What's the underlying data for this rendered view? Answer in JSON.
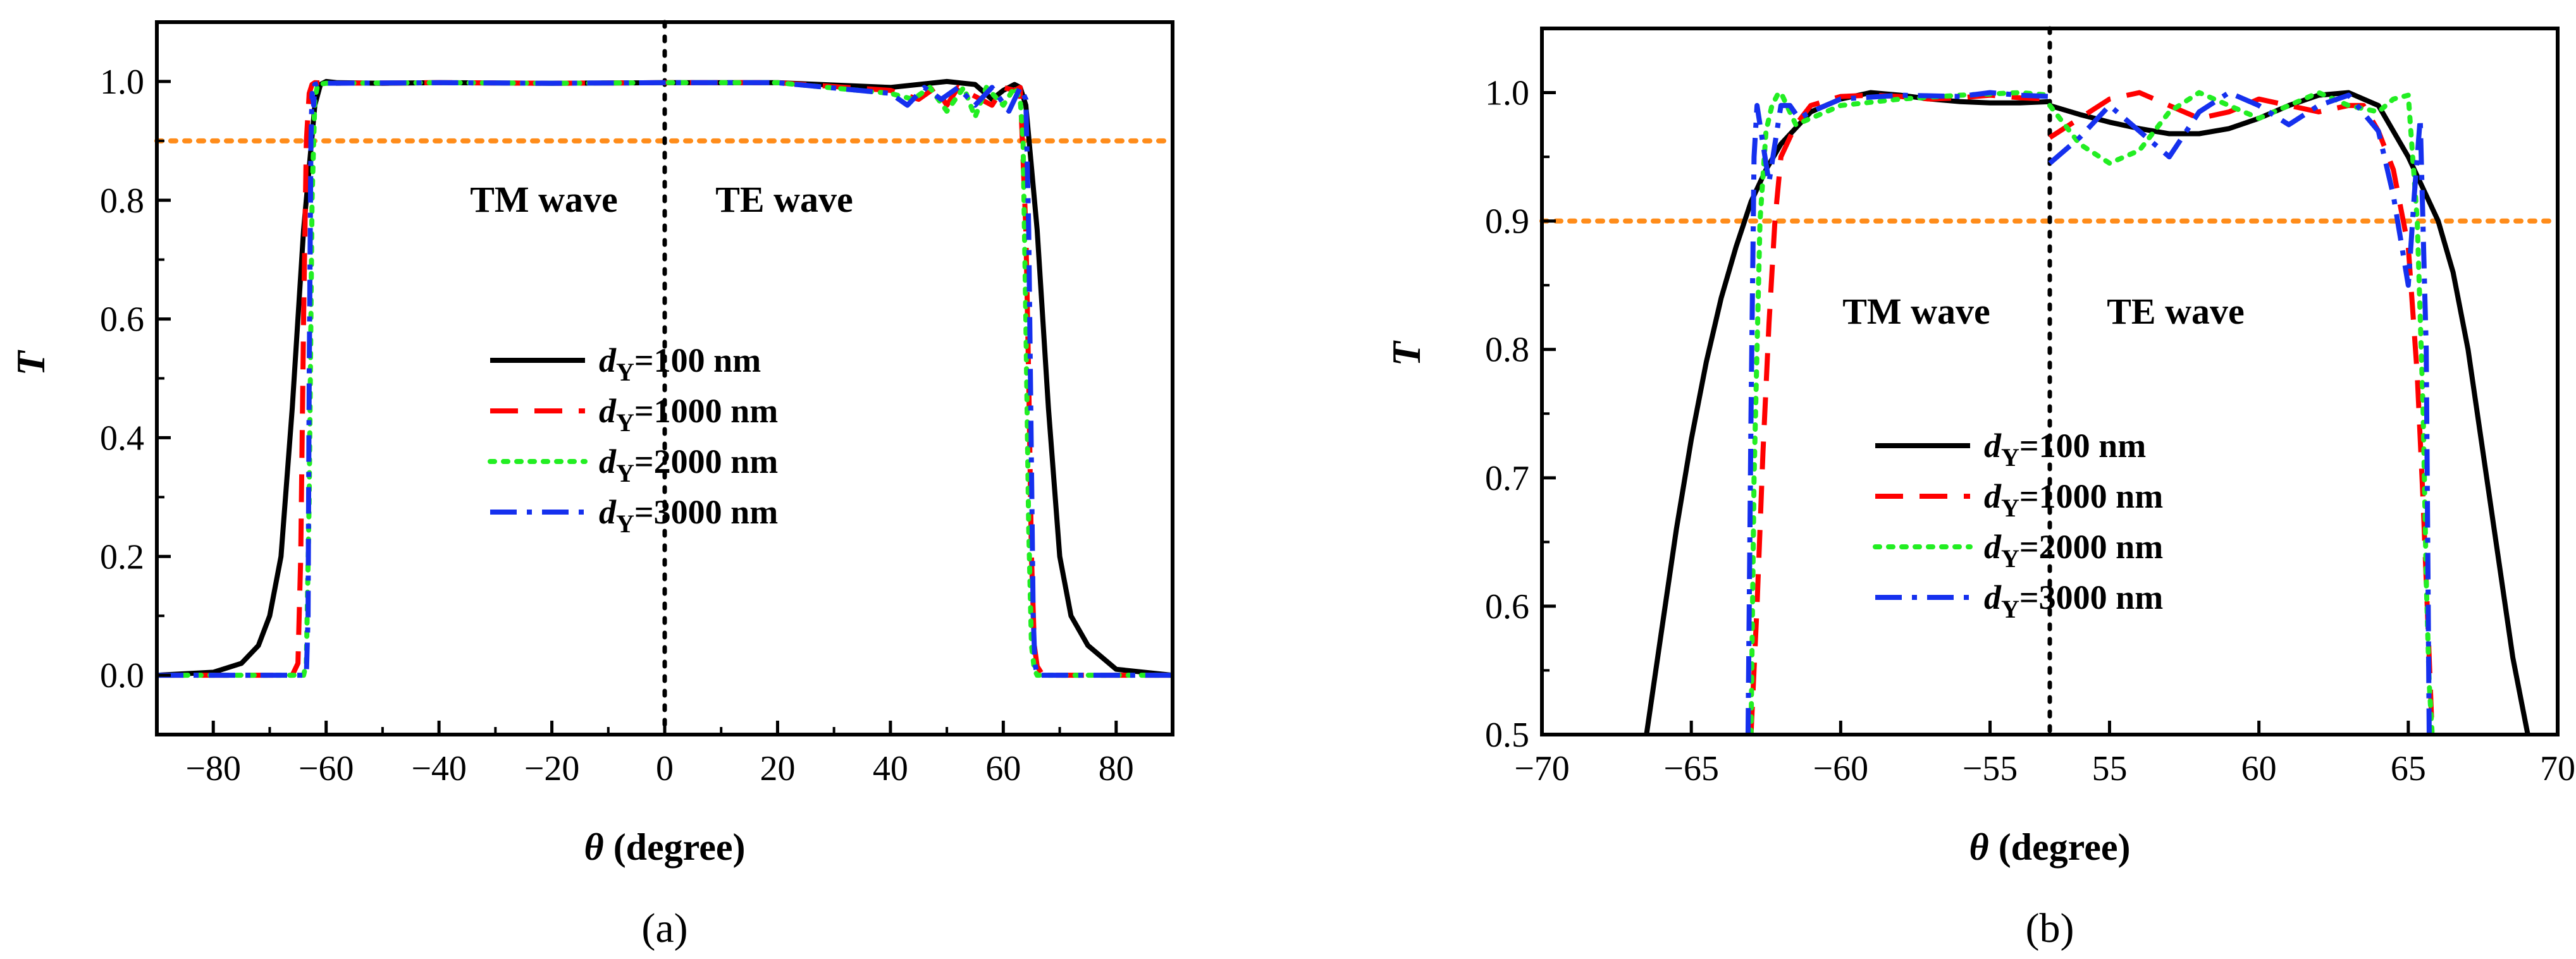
{
  "chart_data": [
    {
      "type": "line",
      "panel_label": "(a)",
      "xlabel_symbol": "θ",
      "xlabel_rest": " (degree)",
      "ylabel": "T",
      "xlim": [
        -90,
        90
      ],
      "ylim": [
        -0.1,
        1.1
      ],
      "xticks": [
        -80,
        -60,
        -40,
        -20,
        0,
        20,
        40,
        60,
        80
      ],
      "xtick_labels": [
        "−80",
        "−60",
        "−40",
        "−20",
        "0",
        "20",
        "40",
        "60",
        "80"
      ],
      "yticks": [
        0.0,
        0.2,
        0.4,
        0.6,
        0.8,
        1.0
      ],
      "ytick_labels": [
        "0.0",
        "0.2",
        "0.4",
        "0.6",
        "0.8",
        "1.0"
      ],
      "threshold": 0.9,
      "divider_x": 0,
      "annotations": [
        {
          "text": "TM wave",
          "x": -35,
          "y": 0.82
        },
        {
          "text": "TE wave",
          "x": 20,
          "y": 0.82
        }
      ],
      "legend_placement": "center",
      "series": [
        {
          "name": "dY=100 nm",
          "d_symbol": "d",
          "d_sub": "Y",
          "label_rest": "=100 nm",
          "color": "#000000",
          "style": "solid",
          "x": [
            -90,
            -80,
            -75,
            -72,
            -70,
            -68,
            -66,
            -64,
            -62,
            -61,
            -60,
            -58,
            -50,
            -40,
            -20,
            0,
            20,
            40,
            45,
            50,
            55,
            58,
            60,
            62,
            63,
            64,
            66,
            68,
            70,
            72,
            75,
            80,
            90
          ],
          "y": [
            0.0,
            0.005,
            0.02,
            0.05,
            0.1,
            0.2,
            0.45,
            0.75,
            0.96,
            0.995,
            1.0,
            0.998,
            0.997,
            0.998,
            0.997,
            0.998,
            0.998,
            0.99,
            0.995,
            1.0,
            0.995,
            0.97,
            0.985,
            0.995,
            0.99,
            0.96,
            0.75,
            0.45,
            0.2,
            0.1,
            0.05,
            0.01,
            0.0
          ]
        },
        {
          "name": "dY=1000 nm",
          "d_symbol": "d",
          "d_sub": "Y",
          "label_rest": "=1000 nm",
          "color": "#ff0000",
          "style": "dash",
          "x": [
            -90,
            -66,
            -65,
            -64.5,
            -64,
            -63.5,
            -63,
            -62.5,
            -62,
            -60,
            -40,
            -20,
            0,
            20,
            40,
            45,
            48,
            50,
            52,
            55,
            58,
            60,
            62,
            63,
            64,
            64.5,
            65,
            65.5,
            66,
            67,
            70,
            90
          ],
          "y": [
            0.0,
            0.0,
            0.02,
            0.2,
            0.6,
            0.9,
            0.98,
            0.995,
            0.998,
            0.997,
            0.998,
            0.997,
            0.998,
            0.998,
            0.985,
            0.97,
            0.99,
            0.96,
            0.99,
            0.975,
            0.96,
            0.99,
            0.985,
            0.99,
            0.75,
            0.5,
            0.2,
            0.05,
            0.015,
            0.0,
            0.0,
            0.0
          ]
        },
        {
          "name": "dY=2000 nm",
          "d_symbol": "d",
          "d_sub": "Y",
          "label_rest": "=2000 nm",
          "color": "#22ee22",
          "style": "dot",
          "x": [
            -90,
            -64,
            -63.5,
            -63,
            -62.5,
            -62,
            -61.5,
            -60,
            -40,
            -20,
            0,
            20,
            40,
            44,
            47,
            50,
            53,
            55,
            57,
            60,
            62,
            63,
            63.5,
            64,
            64.5,
            65,
            65.5,
            66,
            90
          ],
          "y": [
            0.0,
            0.0,
            0.02,
            0.3,
            0.8,
            0.97,
            0.995,
            0.997,
            0.998,
            0.997,
            0.998,
            0.998,
            0.98,
            0.97,
            0.99,
            0.95,
            0.99,
            0.94,
            0.99,
            0.96,
            0.99,
            0.97,
            0.9,
            0.6,
            0.25,
            0.05,
            0.01,
            0.0,
            0.0
          ]
        },
        {
          "name": "dY=3000 nm",
          "d_symbol": "d",
          "d_sub": "Y",
          "label_rest": "=3000 nm",
          "color": "#1530ee",
          "style": "dashdot",
          "x": [
            -90,
            -63.5,
            -63.2,
            -63,
            -62.7,
            -62.5,
            -62.2,
            -62,
            -61,
            -60,
            -40,
            -20,
            0,
            20,
            40,
            43,
            46,
            49,
            52,
            55,
            58,
            61,
            63,
            64,
            64.5,
            65,
            65.3,
            65.6,
            66,
            90
          ],
          "y": [
            0.0,
            0.0,
            0.1,
            0.5,
            0.9,
            0.98,
            0.96,
            0.995,
            0.998,
            0.997,
            0.998,
            0.997,
            0.998,
            0.998,
            0.98,
            0.96,
            0.99,
            0.97,
            0.99,
            0.96,
            0.99,
            0.95,
            0.99,
            0.97,
            0.75,
            0.35,
            0.1,
            0.02,
            0.0,
            0.0
          ]
        }
      ]
    },
    {
      "type": "line",
      "panel_label": "(b)",
      "xlabel_symbol": "θ",
      "xlabel_rest": " (degree)",
      "ylabel": "T",
      "note": "Broken x-axis: left half is the TM-wave range (−70 to −53), right half is the TE-wave range (53 to 70).",
      "xlim_left": [
        -70,
        -53
      ],
      "xlim_right": [
        53,
        70
      ],
      "ylim": [
        0.5,
        1.05
      ],
      "xticks_left": [
        -70,
        -65,
        -60,
        -55
      ],
      "xticks_right": [
        55,
        60,
        65,
        70
      ],
      "xtick_labels": [
        "−70",
        "−65",
        "−60",
        "−55",
        "55",
        "60",
        "65",
        "70"
      ],
      "yticks": [
        0.5,
        0.6,
        0.7,
        0.8,
        0.9,
        1.0
      ],
      "ytick_labels": [
        "0.5",
        "0.6",
        "0.7",
        "0.8",
        "0.9",
        "1.0"
      ],
      "threshold": 0.9,
      "annotations": [
        {
          "text": "TM wave",
          "half": "left",
          "x": -60,
          "y": 0.82
        },
        {
          "text": "TE wave",
          "half": "right",
          "x": 57,
          "y": 0.82
        }
      ],
      "legend_placement": "lower-center",
      "series": [
        {
          "name": "dY=100 nm",
          "d_symbol": "d",
          "d_sub": "Y",
          "label_rest": "=100 nm",
          "color": "#000000",
          "style": "solid",
          "left": {
            "x": [
              -66.5,
              -66,
              -65.5,
              -65,
              -64.5,
              -64,
              -63.5,
              -63,
              -62.5,
              -62,
              -61,
              -60,
              -59,
              -58,
              -57,
              -56,
              -55,
              -54,
              -53
            ],
            "y": [
              0.5,
              0.58,
              0.66,
              0.73,
              0.79,
              0.84,
              0.88,
              0.915,
              0.94,
              0.96,
              0.985,
              0.995,
              1.0,
              0.998,
              0.995,
              0.993,
              0.992,
              0.992,
              0.993
            ]
          },
          "right": {
            "x": [
              53,
              54,
              55,
              56,
              57,
              58,
              59,
              60,
              61,
              62,
              63,
              64,
              65,
              66,
              66.5,
              67,
              67.5,
              68,
              68.5,
              69
            ],
            "y": [
              0.99,
              0.983,
              0.977,
              0.972,
              0.968,
              0.968,
              0.972,
              0.98,
              0.99,
              0.998,
              1.0,
              0.99,
              0.95,
              0.9,
              0.86,
              0.8,
              0.72,
              0.64,
              0.56,
              0.5
            ]
          }
        },
        {
          "name": "dY=1000 nm",
          "d_symbol": "d",
          "d_sub": "Y",
          "label_rest": "=1000 nm",
          "color": "#ff0000",
          "style": "dash",
          "left": {
            "x": [
              -63,
              -62.8,
              -62.6,
              -62.4,
              -62.2,
              -62,
              -61.5,
              -61,
              -60,
              -59,
              -58,
              -57,
              -56,
              -55,
              -54,
              -53
            ],
            "y": [
              0.5,
              0.6,
              0.72,
              0.82,
              0.9,
              0.95,
              0.975,
              0.99,
              0.997,
              0.998,
              0.997,
              0.995,
              0.996,
              0.998,
              0.996,
              0.995
            ]
          },
          "right": {
            "x": [
              53,
              54,
              55,
              56,
              57,
              58,
              59,
              60,
              61,
              62,
              63,
              63.5,
              64,
              64.5,
              65,
              65.3,
              65.5,
              65.7,
              65.8
            ],
            "y": [
              0.965,
              0.98,
              0.995,
              1.0,
              0.99,
              0.98,
              0.985,
              0.995,
              0.99,
              0.985,
              0.99,
              0.99,
              0.97,
              0.94,
              0.88,
              0.78,
              0.68,
              0.56,
              0.5
            ]
          }
        },
        {
          "name": "dY=2000 nm",
          "d_symbol": "d",
          "d_sub": "Y",
          "label_rest": "=2000 nm",
          "color": "#22ee22",
          "style": "dot",
          "left": {
            "x": [
              -63,
              -62.9,
              -62.7,
              -62.5,
              -62.3,
              -62.1,
              -62,
              -61.8,
              -61.5,
              -61,
              -60,
              -58,
              -56,
              -55,
              -54,
              -53
            ],
            "y": [
              0.5,
              0.7,
              0.9,
              0.97,
              0.99,
              0.999,
              1.0,
              0.99,
              0.975,
              0.98,
              0.99,
              0.995,
              0.998,
              0.999,
              1.0,
              0.998
            ]
          },
          "right": {
            "x": [
              53,
              54,
              55,
              56,
              57,
              58,
              59,
              60,
              61,
              62,
              63,
              64,
              64.5,
              65,
              65.3,
              65.5,
              65.6,
              65.7,
              65.8
            ],
            "y": [
              0.99,
              0.96,
              0.945,
              0.955,
              0.985,
              1.0,
              0.99,
              0.98,
              0.99,
              1.0,
              0.99,
              0.985,
              0.995,
              0.998,
              0.9,
              0.75,
              0.62,
              0.54,
              0.5
            ]
          }
        },
        {
          "name": "dY=3000 nm",
          "d_symbol": "d",
          "d_sub": "Y",
          "label_rest": "=3000 nm",
          "color": "#1530ee",
          "style": "dashdot",
          "left": {
            "x": [
              -63.1,
              -63,
              -62.9,
              -62.8,
              -62.6,
              -62.4,
              -62.2,
              -62,
              -61.7,
              -61.4,
              -61,
              -60,
              -58,
              -56,
              -55,
              -54,
              -53
            ],
            "y": [
              0.5,
              0.75,
              0.95,
              0.99,
              0.96,
              0.93,
              0.96,
              0.99,
              0.99,
              0.98,
              0.985,
              0.995,
              0.998,
              0.997,
              1.0,
              0.998,
              0.997
            ]
          },
          "right": {
            "x": [
              53,
              54,
              55,
              56,
              57,
              58,
              59,
              60,
              61,
              62,
              63,
              64,
              64.5,
              65,
              65.2,
              65.4,
              65.6,
              65.7
            ],
            "y": [
              0.945,
              0.965,
              0.99,
              0.97,
              0.95,
              0.985,
              1.0,
              0.99,
              0.975,
              0.99,
              0.998,
              0.97,
              0.92,
              0.85,
              0.92,
              0.98,
              0.8,
              0.5
            ]
          }
        }
      ]
    }
  ]
}
